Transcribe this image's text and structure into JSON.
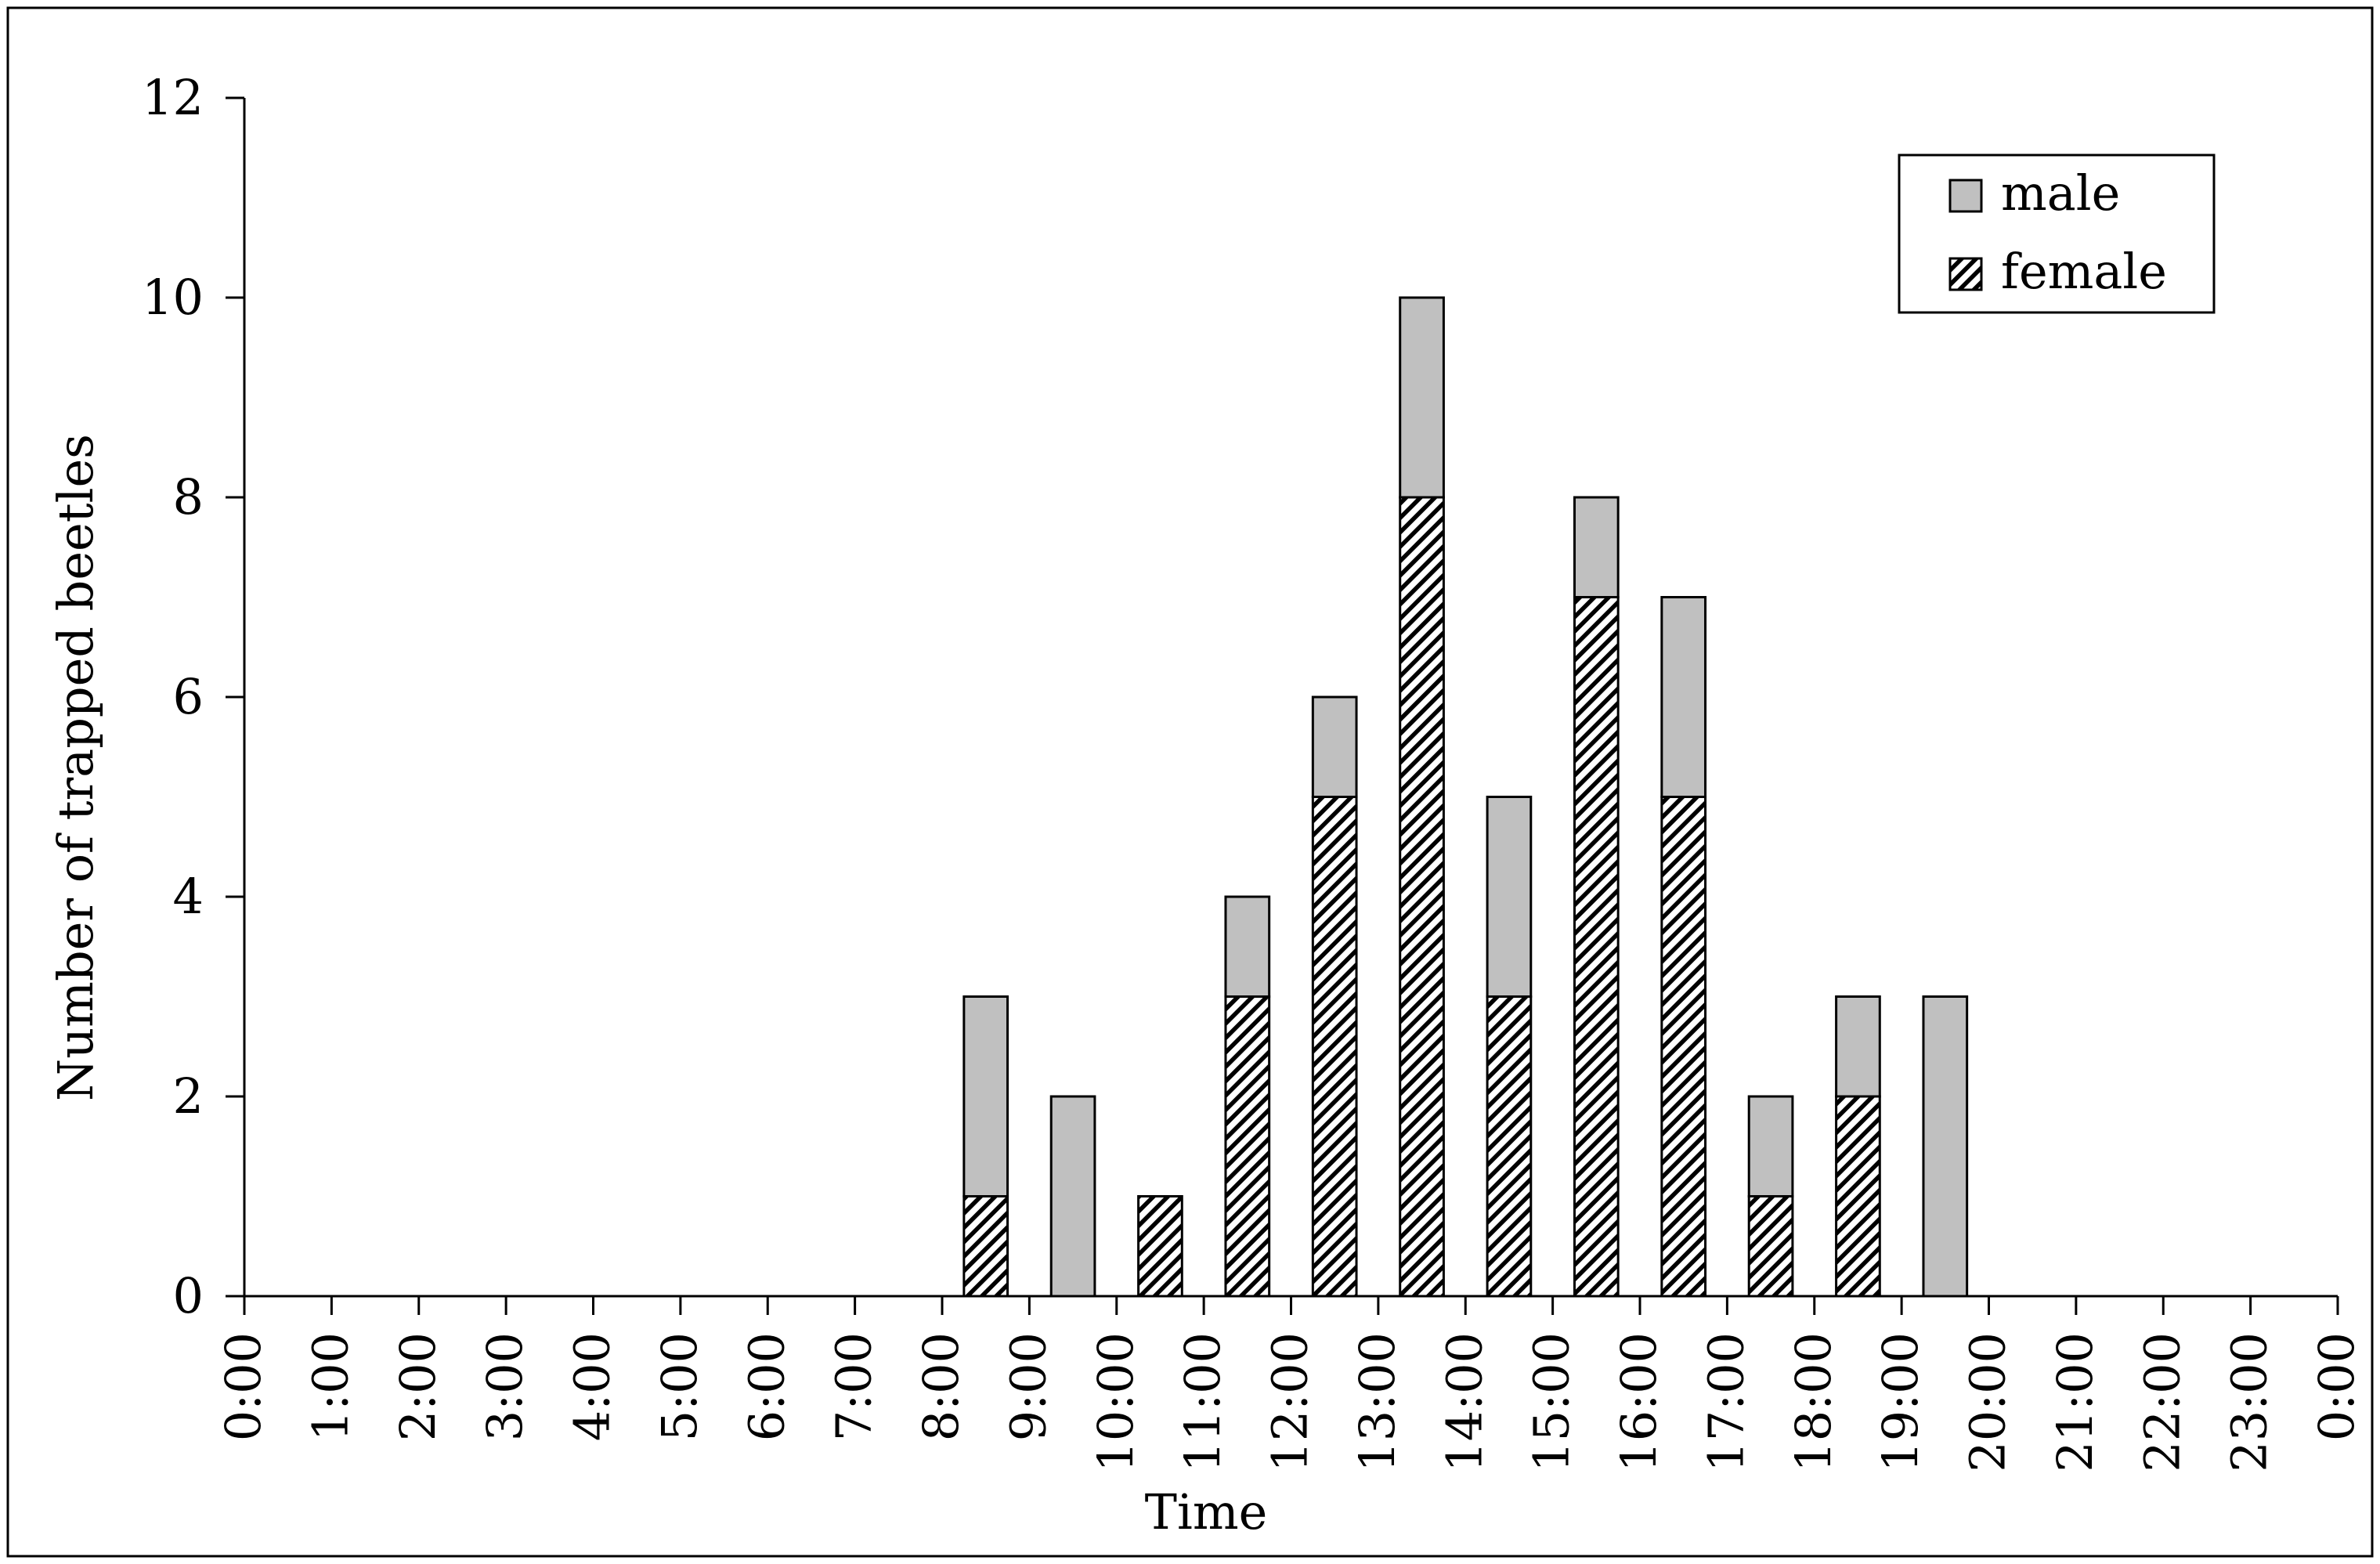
{
  "chart_data": {
    "type": "bar",
    "stacked": true,
    "xlabel": "Time",
    "ylabel": "Number of trapped beetles",
    "ylim": [
      0,
      12
    ],
    "yticks": [
      "0",
      "2",
      "4",
      "6",
      "8",
      "10",
      "12"
    ],
    "x_tick_labels": [
      "0:00",
      "1:00",
      "2:00",
      "3:00",
      "4:00",
      "5:00",
      "6:00",
      "7:00",
      "8:00",
      "9:00",
      "10:00",
      "11:00",
      "12:00",
      "13:00",
      "14:00",
      "15:00",
      "16:00",
      "17:00",
      "18:00",
      "19:00",
      "20:00",
      "21:00",
      "22:00",
      "23:00",
      "0:00"
    ],
    "categories": [
      "8:00",
      "9:00",
      "10:00",
      "11:00",
      "12:00",
      "13:00",
      "14:00",
      "15:00",
      "16:00",
      "17:00",
      "18:00",
      "19:00"
    ],
    "series": [
      {
        "name": "female",
        "fill": "hatched",
        "color": "#000000",
        "values": [
          1,
          0,
          1,
          3,
          5,
          8,
          3,
          7,
          5,
          1,
          2,
          0
        ]
      },
      {
        "name": "male",
        "fill": "solid",
        "color": "#c0c0c0",
        "values": [
          2,
          2,
          0,
          1,
          1,
          2,
          2,
          1,
          2,
          1,
          1,
          3
        ]
      }
    ],
    "legend": {
      "position": "top-right",
      "order": [
        "male",
        "female"
      ]
    },
    "grid": false
  }
}
